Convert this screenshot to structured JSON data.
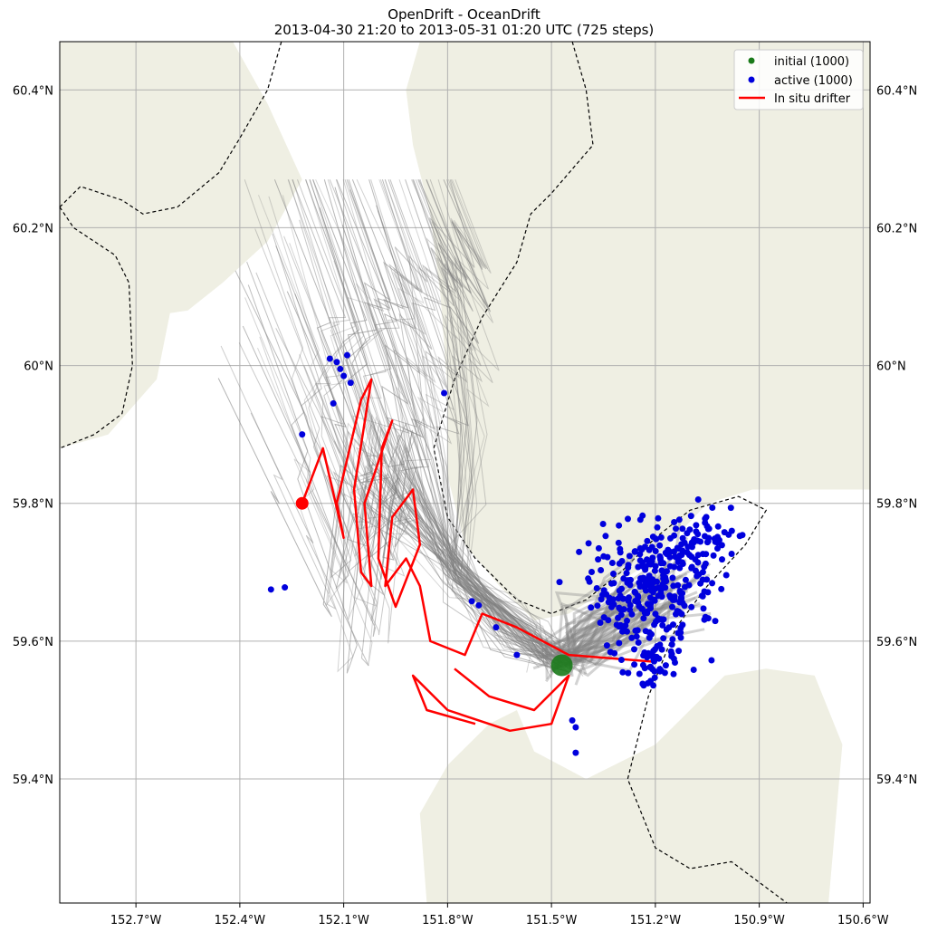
{
  "title": {
    "line1": "OpenDrift - OceanDrift",
    "line2": "2013-04-30 21:20 to 2013-05-31 01:20 UTC (725 steps)"
  },
  "chart_data": {
    "type": "map-trajectory",
    "lon_range": [
      -152.92,
      -150.58
    ],
    "lat_range": [
      59.22,
      60.47
    ],
    "x_ticks": [
      {
        "lon": -152.7,
        "label": "152.7°W"
      },
      {
        "lon": -152.4,
        "label": "152.4°W"
      },
      {
        "lon": -152.1,
        "label": "152.1°W"
      },
      {
        "lon": -151.8,
        "label": "151.8°W"
      },
      {
        "lon": -151.5,
        "label": "151.5°W"
      },
      {
        "lon": -151.2,
        "label": "151.2°W"
      },
      {
        "lon": -150.9,
        "label": "150.9°W"
      },
      {
        "lon": -150.6,
        "label": "150.6°W"
      }
    ],
    "y_ticks": [
      {
        "lat": 59.4,
        "label": "59.4°N"
      },
      {
        "lat": 59.6,
        "label": "59.6°N"
      },
      {
        "lat": 59.8,
        "label": "59.8°N"
      },
      {
        "lat": 60.0,
        "label": "60°N"
      },
      {
        "lat": 60.2,
        "label": "60.2°N"
      },
      {
        "lat": 60.4,
        "label": "60.4°N"
      }
    ],
    "grid": true,
    "colors": {
      "land": "#efefe3",
      "trajectory": "#808080",
      "initial": "#1a7a1a",
      "active": "#0000dd",
      "drifter": "#ff0000",
      "boundary": "#000000",
      "grid": "#b0b0b0"
    },
    "legend": {
      "placement": "top-right",
      "entries": [
        {
          "label": "initial (1000)",
          "marker": "dot",
          "color": "#1a7a1a"
        },
        {
          "label": "active (1000)",
          "marker": "dot",
          "color": "#0000dd"
        },
        {
          "label": "In situ drifter",
          "marker": "line",
          "color": "#ff0000"
        }
      ]
    },
    "land": [
      [
        [
          -152.92,
          60.47
        ],
        [
          -152.42,
          60.47
        ],
        [
          -152.32,
          60.38
        ],
        [
          -152.22,
          60.27
        ],
        [
          -152.32,
          60.18
        ],
        [
          -152.45,
          60.12
        ],
        [
          -152.55,
          60.08
        ],
        [
          -152.68,
          60.07
        ],
        [
          -152.8,
          60.12
        ],
        [
          -152.92,
          60.18
        ]
      ],
      [
        [
          -152.92,
          59.88
        ],
        [
          -152.78,
          59.9
        ],
        [
          -152.64,
          59.98
        ],
        [
          -152.6,
          60.08
        ],
        [
          -152.64,
          60.15
        ],
        [
          -152.76,
          60.2
        ],
        [
          -152.92,
          60.22
        ]
      ],
      [
        [
          -151.78,
          60.47
        ],
        [
          -150.58,
          60.47
        ],
        [
          -150.58,
          59.82
        ],
        [
          -150.92,
          59.82
        ],
        [
          -151.05,
          59.8
        ],
        [
          -151.2,
          59.72
        ],
        [
          -151.32,
          59.68
        ],
        [
          -151.45,
          59.64
        ],
        [
          -151.55,
          59.63
        ],
        [
          -151.65,
          59.68
        ],
        [
          -151.75,
          59.74
        ],
        [
          -151.8,
          59.84
        ],
        [
          -151.8,
          59.96
        ],
        [
          -151.82,
          60.1
        ],
        [
          -151.85,
          60.22
        ],
        [
          -151.9,
          60.32
        ],
        [
          -151.92,
          60.4
        ],
        [
          -151.88,
          60.47
        ]
      ],
      [
        [
          -151.86,
          59.22
        ],
        [
          -150.7,
          59.22
        ],
        [
          -150.66,
          59.45
        ],
        [
          -150.74,
          59.55
        ],
        [
          -150.88,
          59.56
        ],
        [
          -151.0,
          59.55
        ],
        [
          -151.2,
          59.45
        ],
        [
          -151.4,
          59.4
        ],
        [
          -151.55,
          59.44
        ],
        [
          -151.6,
          59.5
        ],
        [
          -151.68,
          59.48
        ],
        [
          -151.8,
          59.42
        ],
        [
          -151.88,
          59.35
        ]
      ]
    ],
    "boundaries": [
      [
        [
          -152.92,
          60.23
        ],
        [
          -152.86,
          60.26
        ],
        [
          -152.74,
          60.24
        ],
        [
          -152.68,
          60.22
        ],
        [
          -152.58,
          60.23
        ],
        [
          -152.46,
          60.28
        ],
        [
          -152.4,
          60.33
        ],
        [
          -152.32,
          60.4
        ],
        [
          -152.28,
          60.47
        ]
      ],
      [
        [
          -152.92,
          60.23
        ],
        [
          -152.88,
          60.2
        ],
        [
          -152.82,
          60.18
        ],
        [
          -152.76,
          60.16
        ],
        [
          -152.72,
          60.12
        ],
        [
          -152.71,
          60.0
        ],
        [
          -152.74,
          59.93
        ],
        [
          -152.82,
          59.9
        ],
        [
          -152.92,
          59.88
        ]
      ],
      [
        [
          -151.44,
          60.47
        ],
        [
          -151.4,
          60.4
        ],
        [
          -151.38,
          60.32
        ],
        [
          -151.5,
          60.25
        ],
        [
          -151.56,
          60.22
        ],
        [
          -151.6,
          60.15
        ],
        [
          -151.7,
          60.07
        ],
        [
          -151.78,
          59.98
        ],
        [
          -151.84,
          59.88
        ],
        [
          -151.8,
          59.78
        ],
        [
          -151.72,
          59.72
        ],
        [
          -151.6,
          59.66
        ],
        [
          -151.5,
          59.64
        ],
        [
          -151.4,
          59.66
        ],
        [
          -151.3,
          59.7
        ],
        [
          -151.2,
          59.75
        ],
        [
          -151.1,
          59.79
        ],
        [
          -150.96,
          59.81
        ],
        [
          -150.88,
          59.79
        ],
        [
          -150.94,
          59.74
        ],
        [
          -151.05,
          59.68
        ],
        [
          -151.14,
          59.62
        ],
        [
          -151.22,
          59.52
        ],
        [
          -151.28,
          59.4
        ],
        [
          -151.2,
          59.3
        ],
        [
          -151.1,
          59.27
        ],
        [
          -150.98,
          59.28
        ],
        [
          -150.9,
          59.25
        ],
        [
          -150.82,
          59.22
        ]
      ]
    ],
    "gray_trajectories": {
      "count": 90,
      "start": [
        -151.47,
        59.57
      ],
      "funnel": [
        -151.77,
        59.7
      ]
    },
    "initial_point": {
      "lon": -151.47,
      "lat": 59.565
    },
    "drifter_start": {
      "lon": -152.22,
      "lat": 59.8
    },
    "drifter_path": [
      [
        -151.2,
        59.57
      ],
      [
        -151.45,
        59.58
      ],
      [
        -151.6,
        59.62
      ],
      [
        -151.7,
        59.64
      ],
      [
        -151.75,
        59.58
      ],
      [
        -151.85,
        59.6
      ],
      [
        -151.88,
        59.68
      ],
      [
        -151.92,
        59.72
      ],
      [
        -151.98,
        59.68
      ],
      [
        -151.96,
        59.78
      ],
      [
        -151.9,
        59.82
      ],
      [
        -151.88,
        59.74
      ],
      [
        -151.95,
        59.65
      ],
      [
        -152.0,
        59.72
      ],
      [
        -151.99,
        59.88
      ],
      [
        -151.96,
        59.92
      ],
      [
        -152.04,
        59.8
      ],
      [
        -152.02,
        59.68
      ],
      [
        -152.05,
        59.7
      ],
      [
        -152.07,
        59.82
      ],
      [
        -152.02,
        59.98
      ],
      [
        -152.05,
        59.95
      ],
      [
        -152.12,
        59.8
      ],
      [
        -152.1,
        59.75
      ],
      [
        -152.16,
        59.88
      ],
      [
        -152.22,
        59.8
      ]
    ],
    "drifter_loops": [
      [
        -151.78,
        59.56
      ],
      [
        -151.68,
        59.52
      ],
      [
        -151.55,
        59.5
      ],
      [
        -151.45,
        59.55
      ],
      [
        -151.5,
        59.48
      ],
      [
        -151.62,
        59.47
      ],
      [
        -151.8,
        59.5
      ],
      [
        -151.9,
        59.55
      ],
      [
        -151.86,
        59.5
      ],
      [
        -151.72,
        59.48
      ]
    ],
    "active_clusters": [
      {
        "lon": -151.22,
        "lat": 59.67,
        "sd_lon": 0.09,
        "sd_lat": 0.045,
        "n": 260
      },
      {
        "lon": -151.08,
        "lat": 59.74,
        "sd_lon": 0.06,
        "sd_lat": 0.025,
        "n": 80
      },
      {
        "lon": -151.2,
        "lat": 59.57,
        "sd_lon": 0.03,
        "sd_lat": 0.02,
        "n": 40
      }
    ],
    "active_outliers": [
      [
        -152.14,
        60.01
      ],
      [
        -152.12,
        60.005
      ],
      [
        -152.11,
        59.995
      ],
      [
        -152.09,
        60.015
      ],
      [
        -152.1,
        59.985
      ],
      [
        -152.08,
        59.975
      ],
      [
        -152.13,
        59.945
      ],
      [
        -152.22,
        59.9
      ],
      [
        -151.81,
        59.96
      ],
      [
        -152.31,
        59.675
      ],
      [
        -152.27,
        59.678
      ],
      [
        -151.73,
        59.658
      ],
      [
        -151.71,
        59.652
      ],
      [
        -151.66,
        59.62
      ],
      [
        -151.6,
        59.58
      ],
      [
        -151.44,
        59.485
      ],
      [
        -151.43,
        59.475
      ],
      [
        -151.43,
        59.438
      ]
    ]
  }
}
